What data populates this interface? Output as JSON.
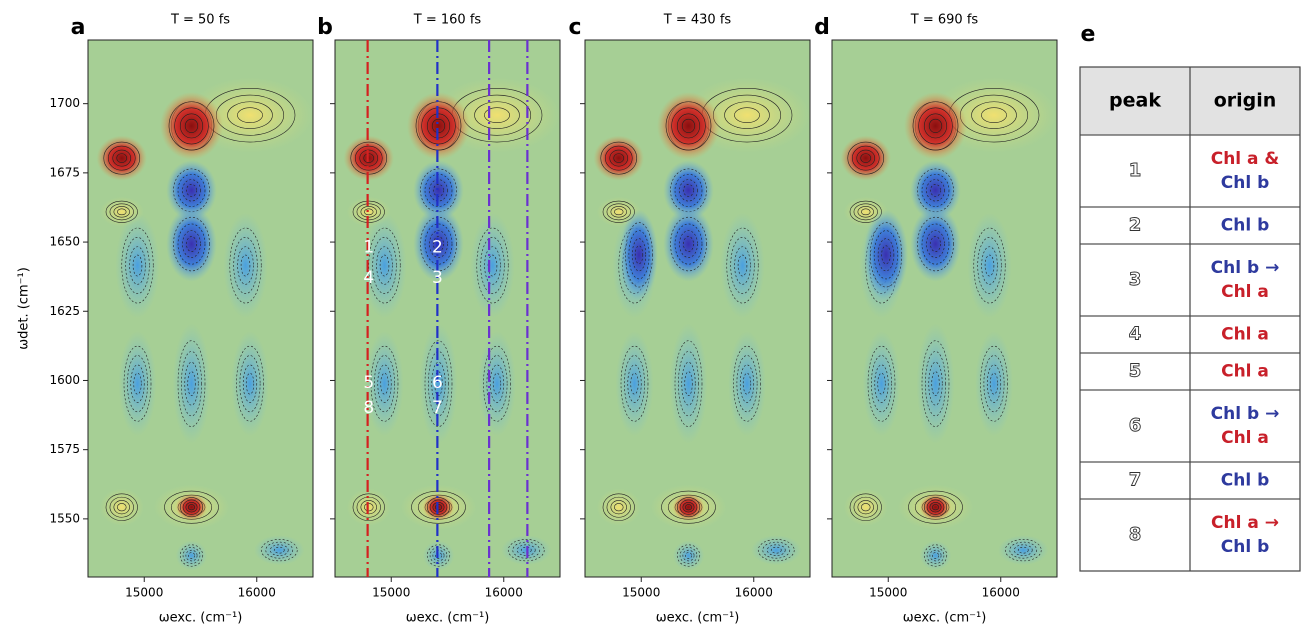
{
  "chart_data": [
    {
      "type": "contour",
      "panel_label": "a",
      "title": "T = 50 fs",
      "xlabel": "ωexc. (cm⁻¹)",
      "ylabel": "ωdet. (cm⁻¹)",
      "xlim": [
        14500,
        16500
      ],
      "ylim": [
        1529,
        1723
      ],
      "xticks": [
        15000,
        16000
      ],
      "yticks": [
        1550,
        1575,
        1600,
        1625,
        1650,
        1675,
        1700
      ],
      "ytick_labels": true
    },
    {
      "type": "contour",
      "panel_label": "b",
      "title": "T = 160 fs",
      "xlabel": "ωexc. (cm⁻¹)",
      "xlim": [
        14500,
        16500
      ],
      "ylim": [
        1529,
        1723
      ],
      "xticks": [
        15000,
        16000
      ],
      "yticks": [
        1550,
        1575,
        1600,
        1625,
        1650,
        1675,
        1700
      ],
      "ytick_labels": false,
      "vlines": [
        {
          "x": 14790,
          "color": "#d42020"
        },
        {
          "x": 15410,
          "color": "#2030c8"
        },
        {
          "x": 15870,
          "color": "#6a30d0"
        },
        {
          "x": 16210,
          "color": "#6a30d0"
        }
      ],
      "annotations": [
        {
          "text": "1",
          "x": 14800,
          "y": 1648
        },
        {
          "text": "4",
          "x": 14800,
          "y": 1637
        },
        {
          "text": "2",
          "x": 15410,
          "y": 1648
        },
        {
          "text": "3",
          "x": 15410,
          "y": 1637
        },
        {
          "text": "5",
          "x": 14800,
          "y": 1599
        },
        {
          "text": "8",
          "x": 14800,
          "y": 1590
        },
        {
          "text": "6",
          "x": 15410,
          "y": 1599
        },
        {
          "text": "7",
          "x": 15410,
          "y": 1590
        }
      ]
    },
    {
      "type": "contour",
      "panel_label": "c",
      "title": "T = 430 fs",
      "xlabel": "ωexc. (cm⁻¹)",
      "xlim": [
        14500,
        16500
      ],
      "ylim": [
        1529,
        1723
      ],
      "xticks": [
        15000,
        16000
      ],
      "yticks": [
        1550,
        1575,
        1600,
        1625,
        1650,
        1675,
        1700
      ],
      "ytick_labels": false
    },
    {
      "type": "contour",
      "panel_label": "d",
      "title": "T = 690 fs",
      "xlabel": "ωexc. (cm⁻¹)",
      "xlim": [
        14500,
        16500
      ],
      "ylim": [
        1529,
        1723
      ],
      "xticks": [
        15000,
        16000
      ],
      "yticks": [
        1550,
        1575,
        1600,
        1625,
        1650,
        1675,
        1700
      ],
      "ytick_labels": false
    }
  ],
  "table": {
    "label": "e",
    "header": [
      "peak",
      "origin"
    ],
    "rows": [
      {
        "peak": "1",
        "origin": [
          {
            "text": "Chl a &",
            "color": "#c8202a"
          },
          {
            "text": "Chl b",
            "color": "#2e3a9e"
          }
        ]
      },
      {
        "peak": "2",
        "origin": [
          {
            "text": "Chl b",
            "color": "#2e3a9e"
          }
        ]
      },
      {
        "peak": "3",
        "origin": [
          {
            "text": "Chl b →",
            "color": "#2e3a9e"
          },
          {
            "text": "Chl a",
            "color": "#c8202a"
          }
        ]
      },
      {
        "peak": "4",
        "origin": [
          {
            "text": "Chl a",
            "color": "#c8202a"
          }
        ]
      },
      {
        "peak": "5",
        "origin": [
          {
            "text": "Chl a",
            "color": "#c8202a"
          }
        ]
      },
      {
        "peak": "6",
        "origin": [
          {
            "text": "Chl b →",
            "color": "#2e3a9e"
          },
          {
            "text": "Chl a",
            "color": "#c8202a"
          }
        ]
      },
      {
        "peak": "7",
        "origin": [
          {
            "text": "Chl b",
            "color": "#2e3a9e"
          }
        ]
      },
      {
        "peak": "8",
        "origin": [
          {
            "text": "Chl a →",
            "color": "#c8202a"
          },
          {
            "text": "Chl b",
            "color": "#2e3a9e"
          }
        ]
      }
    ]
  }
}
